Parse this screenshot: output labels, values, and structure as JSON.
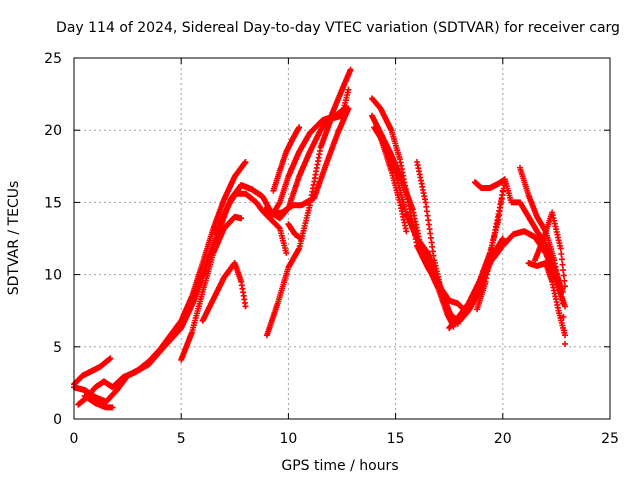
{
  "chart_data": {
    "type": "scatter",
    "title": "Day 114 of 2024, Sidereal Day-to-day VTEC variation (SDTVAR) for receiver carg",
    "xlabel": "GPS time / hours",
    "ylabel": "SDTVAR / TECUs",
    "xlim": [
      0,
      25
    ],
    "ylim": [
      0,
      25
    ],
    "xticks": [
      "0",
      "5",
      "10",
      "15",
      "20",
      "25"
    ],
    "yticks": [
      "0",
      "5",
      "10",
      "15",
      "20",
      "25"
    ],
    "grid": true,
    "marker": "+",
    "color": "#ff0000",
    "series": [
      {
        "name": "trace-1",
        "x": [
          0.0,
          0.5,
          1.0,
          1.5,
          2.0,
          2.5,
          3.0,
          3.5,
          4.0,
          4.5,
          5.0,
          5.5,
          6.0,
          6.5,
          7.0,
          7.5,
          8.0
        ],
        "y": [
          2.2,
          2.0,
          1.5,
          1.2,
          2.0,
          3.0,
          3.4,
          4.0,
          4.8,
          5.8,
          6.8,
          8.5,
          10.8,
          13.2,
          15.2,
          16.8,
          17.8
        ]
      },
      {
        "name": "trace-2",
        "x": [
          0.0,
          0.4,
          0.8,
          1.2,
          1.7
        ],
        "y": [
          2.4,
          3.0,
          3.3,
          3.6,
          4.2
        ]
      },
      {
        "name": "trace-3",
        "x": [
          0.2,
          0.6,
          1.0,
          1.4,
          1.8,
          2.3,
          2.8,
          3.5,
          4.2,
          5.0,
          5.6,
          6.2,
          6.8,
          7.3,
          7.8
        ],
        "y": [
          1.0,
          1.5,
          2.2,
          2.6,
          2.2,
          2.9,
          3.2,
          3.8,
          5.0,
          6.3,
          8.2,
          10.8,
          13.2,
          15.2,
          16.2
        ]
      },
      {
        "name": "trace-4",
        "x": [
          0.5,
          1.0,
          1.5,
          1.8
        ],
        "y": [
          1.6,
          1.1,
          0.8,
          0.8
        ]
      },
      {
        "name": "trace-5",
        "x": [
          5.0,
          5.5,
          6.0,
          6.5,
          7.0,
          7.5,
          7.8
        ],
        "y": [
          4.1,
          6.0,
          8.8,
          11.5,
          13.2,
          14.0,
          13.9
        ]
      },
      {
        "name": "trace-6",
        "x": [
          6.0,
          6.5,
          7.0,
          7.5,
          7.8,
          8.0
        ],
        "y": [
          6.8,
          8.3,
          9.8,
          10.8,
          9.5,
          7.8
        ]
      },
      {
        "name": "trace-7",
        "x": [
          7.5,
          8.0,
          8.5,
          8.8,
          9.2,
          9.6,
          9.9
        ],
        "y": [
          15.6,
          15.6,
          15.0,
          14.4,
          13.8,
          13.2,
          11.5
        ]
      },
      {
        "name": "trace-8",
        "x": [
          6.6,
          7.2,
          7.8,
          8.3,
          8.8,
          9.2,
          9.6,
          10.0,
          10.5,
          11.0,
          11.5,
          12.0,
          12.5,
          12.9
        ],
        "y": [
          12.8,
          14.8,
          16.2,
          15.9,
          15.4,
          14.3,
          13.9,
          14.6,
          16.8,
          18.5,
          20.0,
          21.0,
          22.8,
          24.2
        ]
      },
      {
        "name": "trace-9",
        "x": [
          9.0,
          9.5,
          10.0,
          10.5,
          11.0,
          11.5,
          12.0,
          12.5,
          12.8
        ],
        "y": [
          5.8,
          8.0,
          10.5,
          11.8,
          14.8,
          18.8,
          20.8,
          21.0,
          22.8
        ]
      },
      {
        "name": "trace-10",
        "x": [
          8.9,
          9.3,
          9.7,
          10.2,
          10.6,
          11.2,
          11.8,
          12.3,
          12.8
        ],
        "y": [
          14.5,
          14.2,
          14.3,
          14.8,
          14.8,
          15.3,
          17.8,
          19.8,
          21.5
        ]
      },
      {
        "name": "trace-11",
        "x": [
          9.2,
          9.6,
          10.0,
          10.5,
          11.0,
          11.6,
          12.2,
          12.7
        ],
        "y": [
          14.0,
          15.0,
          16.8,
          18.5,
          19.8,
          20.7,
          21.0,
          21.6
        ]
      },
      {
        "name": "trace-12",
        "x": [
          9.3,
          9.6,
          9.9,
          10.2,
          10.5
        ],
        "y": [
          15.8,
          17.2,
          18.5,
          19.4,
          20.2
        ]
      },
      {
        "name": "trace-13",
        "x": [
          10.0,
          10.3,
          10.6
        ],
        "y": [
          13.5,
          12.8,
          12.5
        ]
      },
      {
        "name": "trace-14",
        "x": [
          13.9,
          14.3,
          14.8,
          15.2,
          15.6,
          16.0,
          16.5,
          17.0,
          17.5,
          17.9,
          18.3
        ],
        "y": [
          22.2,
          21.5,
          20.0,
          18.0,
          15.0,
          12.0,
          10.5,
          9.3,
          8.2,
          8.0,
          7.4
        ]
      },
      {
        "name": "trace-15",
        "x": [
          13.9,
          14.3,
          14.8,
          15.3,
          15.8,
          16.2,
          16.6,
          17.0,
          17.4,
          17.7
        ],
        "y": [
          21.0,
          19.8,
          18.3,
          16.5,
          14.5,
          11.8,
          10.3,
          9.0,
          7.3,
          6.4
        ]
      },
      {
        "name": "trace-16",
        "x": [
          14.0,
          14.5,
          15.0,
          15.5,
          16.0,
          16.5,
          17.0,
          17.5,
          17.9
        ],
        "y": [
          20.2,
          19.0,
          17.0,
          14.2,
          12.5,
          11.5,
          9.5,
          7.4,
          6.6
        ]
      },
      {
        "name": "trace-17",
        "x": [
          14.3,
          14.8,
          15.2,
          15.5
        ],
        "y": [
          19.5,
          17.2,
          15.0,
          13.0
        ]
      },
      {
        "name": "trace-18",
        "x": [
          16.0,
          16.4,
          16.8,
          17.2,
          17.6,
          18.0,
          18.4,
          18.8,
          19.2,
          19.6,
          20.0
        ],
        "y": [
          17.8,
          15.0,
          11.0,
          8.5,
          7.1,
          6.8,
          7.5,
          8.5,
          10.0,
          11.5,
          12.5
        ]
      },
      {
        "name": "trace-19",
        "x": [
          17.5,
          17.9,
          18.4,
          18.9,
          19.4,
          19.8,
          20.0
        ],
        "y": [
          6.3,
          7.0,
          8.0,
          9.5,
          11.5,
          13.8,
          15.8
        ]
      },
      {
        "name": "trace-20",
        "x": [
          18.8,
          19.2,
          19.5,
          19.8,
          20.1
        ],
        "y": [
          7.6,
          9.5,
          12.0,
          14.2,
          16.4
        ]
      },
      {
        "name": "trace-21",
        "x": [
          18.7,
          19.0,
          19.4,
          19.8,
          20.1,
          20.4,
          20.8,
          21.2,
          21.6,
          22.0,
          22.4,
          22.8
        ],
        "y": [
          16.4,
          16.0,
          16.0,
          16.3,
          16.6,
          15.0,
          15.0,
          14.0,
          13.0,
          12.0,
          10.5,
          8.8
        ]
      },
      {
        "name": "trace-22",
        "x": [
          19.2,
          19.6,
          20.0,
          20.5,
          21.0,
          21.5,
          22.0,
          22.5,
          22.9
        ],
        "y": [
          10.5,
          11.2,
          12.0,
          12.8,
          13.0,
          12.6,
          11.5,
          9.5,
          7.8
        ]
      },
      {
        "name": "trace-23",
        "x": [
          20.8,
          21.2,
          21.6,
          22.0,
          22.4,
          22.8,
          22.9
        ],
        "y": [
          17.4,
          15.5,
          14.0,
          13.0,
          11.0,
          8.0,
          5.2
        ]
      },
      {
        "name": "trace-24",
        "x": [
          21.2,
          21.6,
          22.0,
          22.3,
          22.6,
          22.9
        ],
        "y": [
          10.8,
          10.6,
          10.8,
          9.5,
          7.5,
          5.8
        ]
      },
      {
        "name": "trace-25",
        "x": [
          21.5,
          21.9,
          22.3,
          22.7,
          22.9
        ],
        "y": [
          11.0,
          12.5,
          14.3,
          11.8,
          9.2
        ]
      }
    ]
  }
}
